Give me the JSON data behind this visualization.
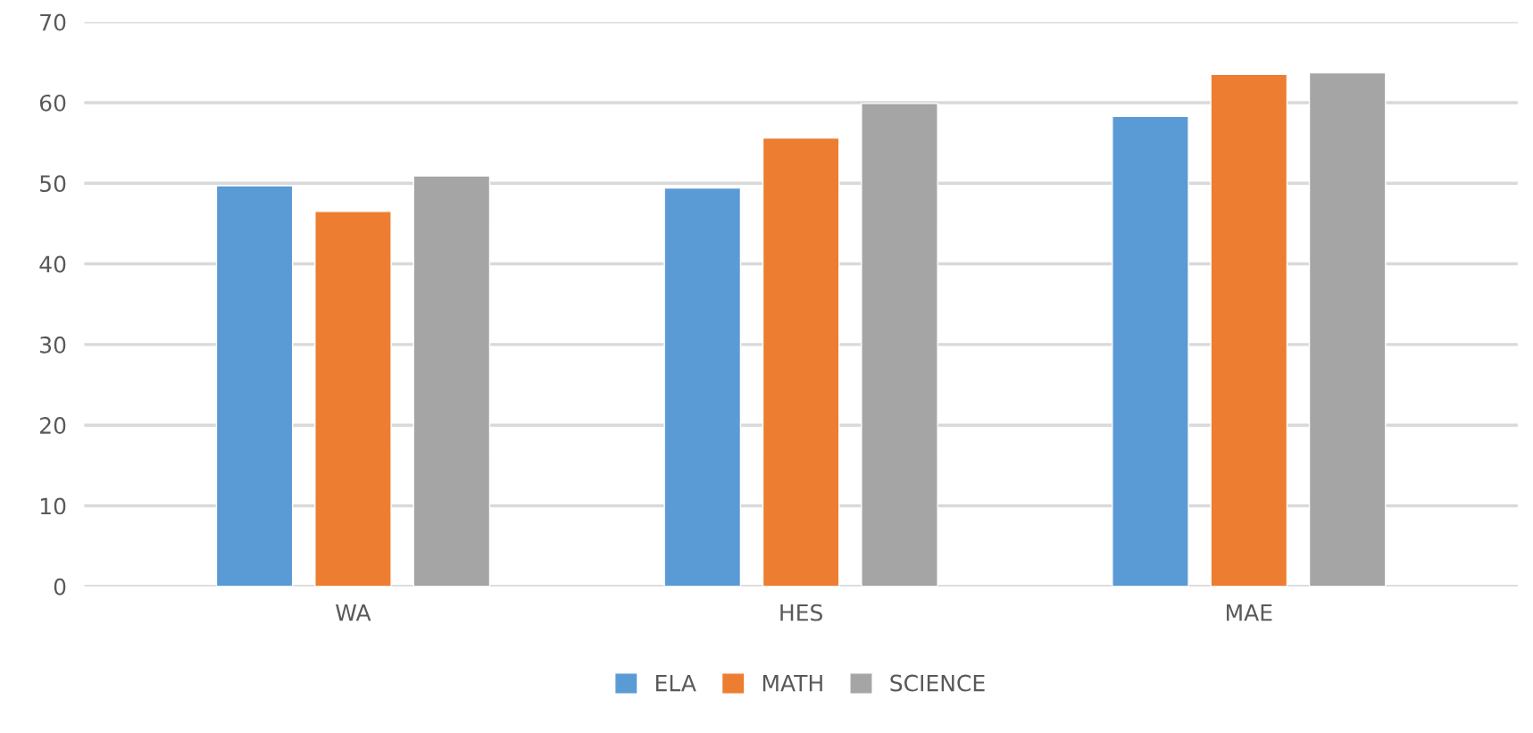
{
  "chart_data": {
    "type": "bar",
    "categories": [
      "WA",
      "HES",
      "MAE"
    ],
    "series": [
      {
        "name": "ELA",
        "color": "#5b9bd5",
        "values": [
          49.7,
          49.4,
          58.3
        ]
      },
      {
        "name": "MATH",
        "color": "#ed7d31",
        "values": [
          46.5,
          55.6,
          63.5
        ]
      },
      {
        "name": "SCIENCE",
        "color": "#a5a5a5",
        "values": [
          50.9,
          59.9,
          63.7
        ]
      }
    ],
    "ylim": [
      0,
      70
    ],
    "yticks": [
      0,
      10,
      20,
      30,
      40,
      50,
      60,
      70
    ],
    "grid": "y",
    "legend": "bottom"
  }
}
